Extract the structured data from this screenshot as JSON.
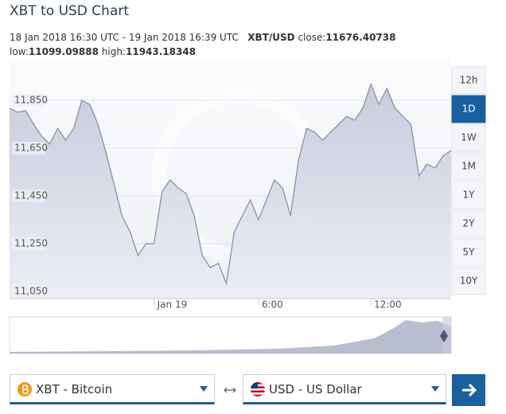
{
  "header": {
    "title": "XBT to USD Chart",
    "range": "18 Jan 2018 16:30 UTC - 19 Jan 2018 16:39 UTC",
    "pair": "XBT/USD",
    "close_label": "close:",
    "close": "11676.40738",
    "low_label": "low:",
    "low": "11099.09888",
    "high_label": "high:",
    "high": "11943.18348"
  },
  "chart_data": {
    "type": "area",
    "categories": [
      null,
      null,
      null,
      null,
      null,
      null,
      null,
      null,
      null,
      null,
      null,
      null,
      null,
      null,
      null,
      null,
      null,
      null,
      "Jan 19",
      null,
      null,
      null,
      null,
      null,
      null,
      null,
      null,
      null,
      null,
      null,
      null,
      "6:00",
      null,
      null,
      null,
      null,
      null,
      null,
      null,
      null,
      null,
      null,
      null,
      null,
      null,
      "12:00",
      null,
      null,
      null,
      null,
      null,
      null,
      null,
      null,
      null,
      null
    ],
    "values": [
      11817,
      11800,
      11807,
      11750,
      11700,
      11667,
      11733,
      11683,
      11733,
      11850,
      11833,
      11750,
      11633,
      11500,
      11367,
      11300,
      11200,
      11250,
      11250,
      11467,
      11517,
      11483,
      11460,
      11367,
      11200,
      11150,
      11167,
      11083,
      11300,
      11367,
      11433,
      11350,
      11433,
      11517,
      11483,
      11367,
      11600,
      11733,
      11717,
      11683,
      11717,
      11750,
      11783,
      11767,
      11817,
      11917,
      11833,
      11900,
      11817,
      11783,
      11750,
      11533,
      11583,
      11567,
      11617,
      11640
    ],
    "color": "#8b90aa",
    "ylim": [
      11020,
      12020
    ],
    "yticks": [
      {
        "value": 11050,
        "label": "11,050"
      },
      {
        "value": 11250,
        "label": "11,250"
      },
      {
        "value": 11450,
        "label": "11,450"
      },
      {
        "value": 11650,
        "label": "11,650"
      },
      {
        "value": 11850,
        "label": "11,850"
      }
    ],
    "grid": true
  },
  "range_buttons": {
    "items": [
      "12h",
      "1D",
      "1W",
      "1M",
      "1Y",
      "2Y",
      "5Y",
      "10Y"
    ],
    "active": "1D"
  },
  "converter": {
    "from": "XBT - Bitcoin",
    "to": "USD - US Dollar"
  }
}
